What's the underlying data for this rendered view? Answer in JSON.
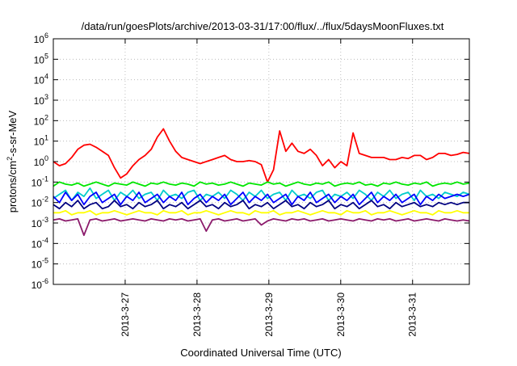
{
  "chart_data": {
    "type": "line",
    "title": "/data/run/goesPlots/archive/2013-03-31/17:00/flux/../flux/5daysMoonFluxes.txt",
    "xlabel": "Coordinated Universal Time (UTC)",
    "ylabel_parts": {
      "pre": "protons/cm",
      "sup": "2",
      "post": "-s-sr-MeV"
    },
    "y_scale": "log",
    "ylim": [
      1e-06,
      1000000.0
    ],
    "y_ticks": [
      {
        "value": -6,
        "base": "10",
        "exp": "-6"
      },
      {
        "value": -5,
        "base": "10",
        "exp": "-5"
      },
      {
        "value": -4,
        "base": "10",
        "exp": "-4"
      },
      {
        "value": -3,
        "base": "10",
        "exp": "-3"
      },
      {
        "value": -2,
        "base": "10",
        "exp": "-2"
      },
      {
        "value": -1,
        "base": "10",
        "exp": "-1"
      },
      {
        "value": 0,
        "base": "10",
        "exp": "0"
      },
      {
        "value": 1,
        "base": "10",
        "exp": "1"
      },
      {
        "value": 2,
        "base": "10",
        "exp": "2"
      },
      {
        "value": 3,
        "base": "10",
        "exp": "3"
      },
      {
        "value": 4,
        "base": "10",
        "exp": "4"
      },
      {
        "value": 5,
        "base": "10",
        "exp": "5"
      },
      {
        "value": 6,
        "base": "10",
        "exp": "6"
      }
    ],
    "x_range_days": [
      "2013-3-26 00:00",
      "2013-3-31 19:00"
    ],
    "x_ticks": [
      {
        "label": "2013-3-27",
        "day": 1
      },
      {
        "label": "2013-3-28",
        "day": 2
      },
      {
        "label": "2013-3-29",
        "day": 3
      },
      {
        "label": "2013-3-30",
        "day": 4
      },
      {
        "label": "2013-3-31",
        "day": 5
      }
    ],
    "grid": true,
    "series": [
      {
        "color": "#ff0000",
        "log_values": [
          0.0,
          -0.2,
          -0.1,
          0.2,
          0.6,
          0.8,
          0.85,
          0.7,
          0.5,
          0.3,
          -0.3,
          -0.8,
          -0.6,
          -0.2,
          0.1,
          0.3,
          0.6,
          1.2,
          1.6,
          1.0,
          0.5,
          0.2,
          0.1,
          0.0,
          -0.1,
          0.0,
          0.1,
          0.2,
          0.3,
          0.1,
          0.0,
          0.0,
          0.05,
          0.0,
          -0.15,
          -1.0,
          -0.4,
          1.5,
          0.5,
          0.9,
          0.5,
          0.4,
          0.6,
          0.3,
          -0.2,
          0.1,
          -0.3,
          0.0,
          -0.2,
          1.4,
          0.4,
          0.3,
          0.2,
          0.2,
          0.2,
          0.1,
          0.1,
          0.2,
          0.15,
          0.3,
          0.3,
          0.1,
          0.2,
          0.4,
          0.4,
          0.3,
          0.35,
          0.45,
          0.4
        ]
      },
      {
        "color": "#00e600",
        "log_values": [
          -1.2,
          -1.0,
          -1.1,
          -1.15,
          -1.05,
          -1.2,
          -1.1,
          -1.0,
          -1.1,
          -1.2,
          -1.05,
          -1.1,
          -1.15,
          -1.0,
          -1.1,
          -1.2,
          -1.05,
          -1.1,
          -1.0,
          -1.1,
          -1.15,
          -1.05,
          -1.1,
          -1.2,
          -1.0,
          -1.1,
          -1.05,
          -1.15,
          -1.1,
          -1.0,
          -1.1,
          -1.2,
          -1.05,
          -1.1,
          -1.15,
          -1.0,
          -1.1,
          -1.05,
          -1.2,
          -1.1,
          -1.0,
          -1.1,
          -1.15,
          -1.05,
          -1.1,
          -1.0,
          -1.2,
          -1.1,
          -1.05,
          -1.1,
          -1.0,
          -1.15,
          -1.1,
          -1.2,
          -1.05,
          -1.1,
          -1.0,
          -1.1,
          -1.15,
          -1.05,
          -1.1,
          -1.0,
          -1.2,
          -1.1,
          -1.05,
          -1.1,
          -1.0,
          -1.1,
          -1.05
        ]
      },
      {
        "color": "#00cccc",
        "log_values": [
          -1.8,
          -1.6,
          -1.4,
          -1.9,
          -1.5,
          -1.7,
          -1.3,
          -1.8,
          -1.6,
          -1.4,
          -1.9,
          -1.5,
          -1.7,
          -1.4,
          -1.8,
          -1.6,
          -1.5,
          -1.9,
          -1.4,
          -1.7,
          -1.6,
          -1.8,
          -1.5,
          -1.4,
          -1.9,
          -1.6,
          -1.7,
          -1.5,
          -1.8,
          -1.4,
          -1.6,
          -1.9,
          -1.5,
          -1.7,
          -1.4,
          -1.8,
          -1.6,
          -1.5,
          -1.9,
          -1.4,
          -1.7,
          -1.6,
          -1.8,
          -1.5,
          -1.4,
          -1.9,
          -1.6,
          -1.7,
          -1.5,
          -1.8,
          -1.4,
          -1.6,
          -1.9,
          -1.5,
          -1.7,
          -1.4,
          -1.8,
          -1.6,
          -1.5,
          -1.9,
          -1.4,
          -1.7,
          -1.6,
          -1.8,
          -1.5,
          -1.6,
          -1.7,
          -1.5,
          -1.6
        ]
      },
      {
        "color": "#0000ff",
        "log_values": [
          -1.7,
          -2.0,
          -1.5,
          -1.9,
          -1.6,
          -2.1,
          -1.7,
          -1.5,
          -2.0,
          -1.8,
          -1.6,
          -2.1,
          -1.7,
          -1.9,
          -1.5,
          -2.0,
          -1.8,
          -1.6,
          -2.0,
          -1.7,
          -1.9,
          -1.5,
          -2.1,
          -1.8,
          -1.6,
          -2.0,
          -1.7,
          -1.9,
          -1.6,
          -2.1,
          -1.8,
          -1.5,
          -2.0,
          -1.7,
          -1.9,
          -1.6,
          -2.0,
          -1.8,
          -1.6,
          -2.1,
          -1.7,
          -1.9,
          -1.5,
          -2.0,
          -1.8,
          -1.6,
          -2.0,
          -1.7,
          -1.9,
          -1.6,
          -2.1,
          -1.8,
          -1.5,
          -2.0,
          -1.7,
          -1.9,
          -1.6,
          -2.0,
          -1.8,
          -1.6,
          -2.1,
          -1.7,
          -1.9,
          -1.6,
          -1.8,
          -1.7,
          -1.6,
          -1.7,
          -1.6
        ]
      },
      {
        "color": "#000080",
        "log_values": [
          -2.1,
          -2.3,
          -2.0,
          -2.2,
          -1.9,
          -2.3,
          -2.1,
          -2.0,
          -2.3,
          -2.2,
          -1.9,
          -2.2,
          -2.1,
          -2.3,
          -2.0,
          -2.2,
          -2.1,
          -1.9,
          -2.3,
          -2.1,
          -2.2,
          -2.0,
          -2.3,
          -2.1,
          -1.9,
          -2.2,
          -2.1,
          -2.3,
          -2.0,
          -2.2,
          -2.1,
          -1.9,
          -2.3,
          -2.1,
          -2.2,
          -2.0,
          -2.3,
          -2.1,
          -1.9,
          -2.2,
          -2.1,
          -2.3,
          -2.0,
          -2.2,
          -2.1,
          -1.9,
          -2.3,
          -2.1,
          -2.2,
          -2.0,
          -2.3,
          -2.1,
          -1.9,
          -2.2,
          -2.1,
          -2.3,
          -2.0,
          -2.2,
          -2.1,
          -2.0,
          -2.2,
          -2.1,
          -2.2,
          -2.0,
          -2.1,
          -2.0,
          -2.1,
          -2.0,
          -2.0
        ]
      },
      {
        "color": "#ffff00",
        "log_values": [
          -2.5,
          -2.5,
          -2.4,
          -2.6,
          -2.5,
          -2.5,
          -2.4,
          -2.6,
          -2.5,
          -2.5,
          -2.4,
          -2.5,
          -2.6,
          -2.5,
          -2.4,
          -2.5,
          -2.5,
          -2.6,
          -2.4,
          -2.5,
          -2.5,
          -2.4,
          -2.6,
          -2.5,
          -2.5,
          -2.4,
          -2.5,
          -2.6,
          -2.5,
          -2.4,
          -2.5,
          -2.5,
          -2.6,
          -2.4,
          -2.5,
          -2.5,
          -2.4,
          -2.6,
          -2.5,
          -2.5,
          -2.4,
          -2.5,
          -2.6,
          -2.5,
          -2.4,
          -2.5,
          -2.5,
          -2.6,
          -2.4,
          -2.5,
          -2.5,
          -2.4,
          -2.6,
          -2.5,
          -2.5,
          -2.4,
          -2.5,
          -2.6,
          -2.5,
          -2.4,
          -2.5,
          -2.5,
          -2.6,
          -2.4,
          -2.5,
          -2.5,
          -2.4,
          -2.5,
          -2.5
        ]
      },
      {
        "color": "#8b1a6b",
        "log_values": [
          -2.85,
          -2.8,
          -2.9,
          -2.85,
          -2.8,
          -3.6,
          -2.85,
          -2.8,
          -2.9,
          -2.85,
          -2.8,
          -2.9,
          -2.85,
          -2.8,
          -2.85,
          -2.9,
          -2.8,
          -2.85,
          -2.9,
          -2.8,
          -2.85,
          -2.8,
          -2.9,
          -2.85,
          -2.8,
          -3.4,
          -2.85,
          -2.8,
          -2.9,
          -2.85,
          -2.8,
          -2.9,
          -2.85,
          -2.8,
          -3.1,
          -2.9,
          -2.8,
          -2.85,
          -2.9,
          -2.8,
          -2.85,
          -2.8,
          -2.9,
          -2.85,
          -2.8,
          -2.9,
          -2.85,
          -2.8,
          -2.85,
          -2.9,
          -2.8,
          -2.85,
          -2.9,
          -2.8,
          -2.85,
          -2.8,
          -2.9,
          -2.85,
          -2.8,
          -2.9,
          -2.85,
          -2.8,
          -2.85,
          -2.9,
          -2.8,
          -2.85,
          -2.9,
          -2.85,
          -2.9
        ]
      }
    ]
  }
}
